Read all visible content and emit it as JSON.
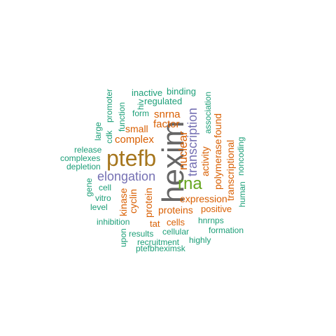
{
  "colors": {
    "hexim": "#666666",
    "ptefb": "#a6761d",
    "rna": "#66a61e",
    "purple": "#7570b3",
    "orange": "#d95f02",
    "teal": "#1b9e77"
  },
  "words": {
    "hexim": "hexim",
    "ptefb": "ptefb",
    "rna": "rna",
    "elongation": "elongation",
    "transcription": "transcription",
    "nuclear": "nuclear",
    "complex": "complex",
    "factor": "factor",
    "snrna": "snrna",
    "small": "small",
    "activity": "activity",
    "polymerase": "polymerase",
    "found": "found",
    "transcriptional": "transcriptional",
    "expression": "expression",
    "proteins": "proteins",
    "positive": "positive",
    "kinase": "kinase",
    "cyclin": "cyclin",
    "protein": "protein",
    "tat": "tat",
    "cells": "cells",
    "inactive": "inactive",
    "binding": "binding",
    "hiv": "hiv",
    "regulated": "regulated",
    "promoter": "promoter",
    "cdk": "cdk",
    "function": "function",
    "form": "form",
    "association": "association",
    "large": "large",
    "release": "release",
    "complexes": "complexes",
    "depletion": "depletion",
    "gene": "gene",
    "cell": "cell",
    "vitro": "vitro",
    "level": "level",
    "noncoding": "noncoding",
    "human": "human",
    "inhibition": "inhibition",
    "hnrnps": "hnrnps",
    "formation": "formation",
    "upon": "upon",
    "results": "results",
    "cellular": "cellular",
    "recruitment": "recruitment",
    "highly": "highly",
    "ptefbheximsk": "ptefbheximsk"
  }
}
